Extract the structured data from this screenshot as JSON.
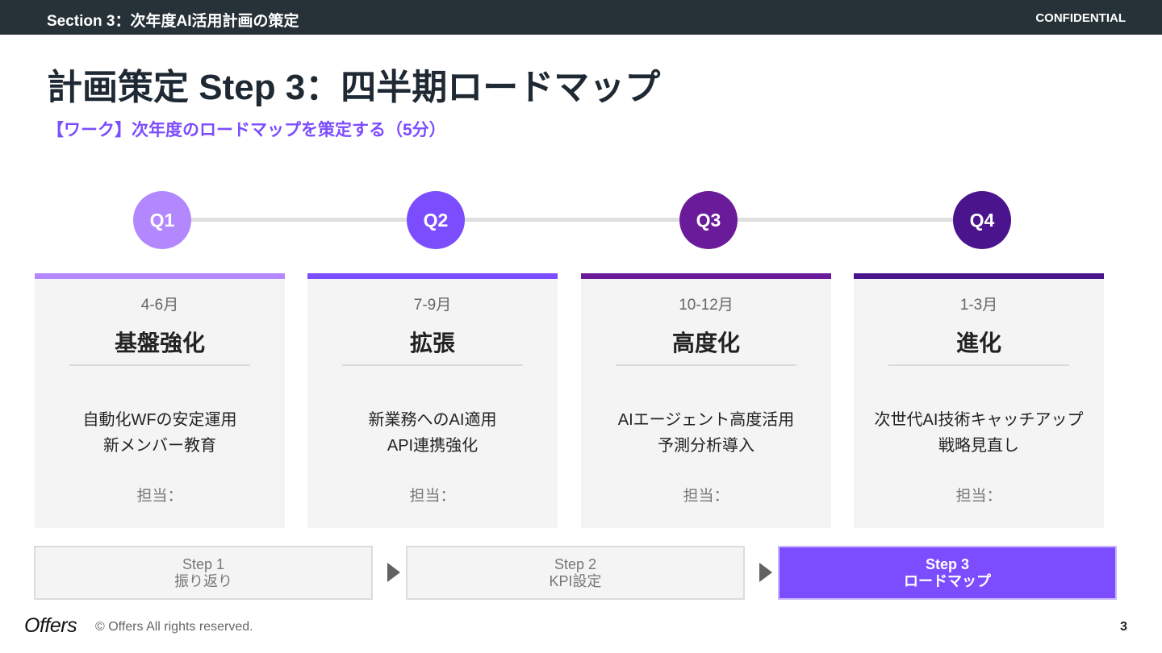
{
  "header": {
    "section": "Section 3：次年度AI活用計画の策定",
    "confidential": "CONFIDENTIAL"
  },
  "title": "計画策定 Step 3：四半期ロードマップ",
  "subtitle": "【ワーク】次年度のロードマップを策定する（5分）",
  "quarters": [
    {
      "label": "Q1",
      "color": "#b388ff",
      "period": "4-6月",
      "title": "基盤強化",
      "lines": [
        "自動化WFの安定運用",
        "新メンバー教育"
      ],
      "owner": "担当："
    },
    {
      "label": "Q2",
      "color": "#7c4dff",
      "period": "7-9月",
      "title": "拡張",
      "lines": [
        "新業務へのAI適用",
        "API連携強化"
      ],
      "owner": "担当："
    },
    {
      "label": "Q3",
      "color": "#6a1b9a",
      "period": "10-12月",
      "title": "高度化",
      "lines": [
        "AIエージェント高度活用",
        "予測分析導入"
      ],
      "owner": "担当："
    },
    {
      "label": "Q4",
      "color": "#4a148c",
      "period": "1-3月",
      "title": "進化",
      "lines": [
        "次世代AI技術キャッチアップ",
        "戦略見直し"
      ],
      "owner": "担当："
    }
  ],
  "steps": [
    {
      "num": "Step 1",
      "label": "振り返り",
      "active": false
    },
    {
      "num": "Step 2",
      "label": "KPI設定",
      "active": false
    },
    {
      "num": "Step 3",
      "label": "ロードマップ",
      "active": true
    }
  ],
  "footer": {
    "logo": "Offers",
    "copyright": "© Offers All rights reserved.",
    "page": "3"
  }
}
